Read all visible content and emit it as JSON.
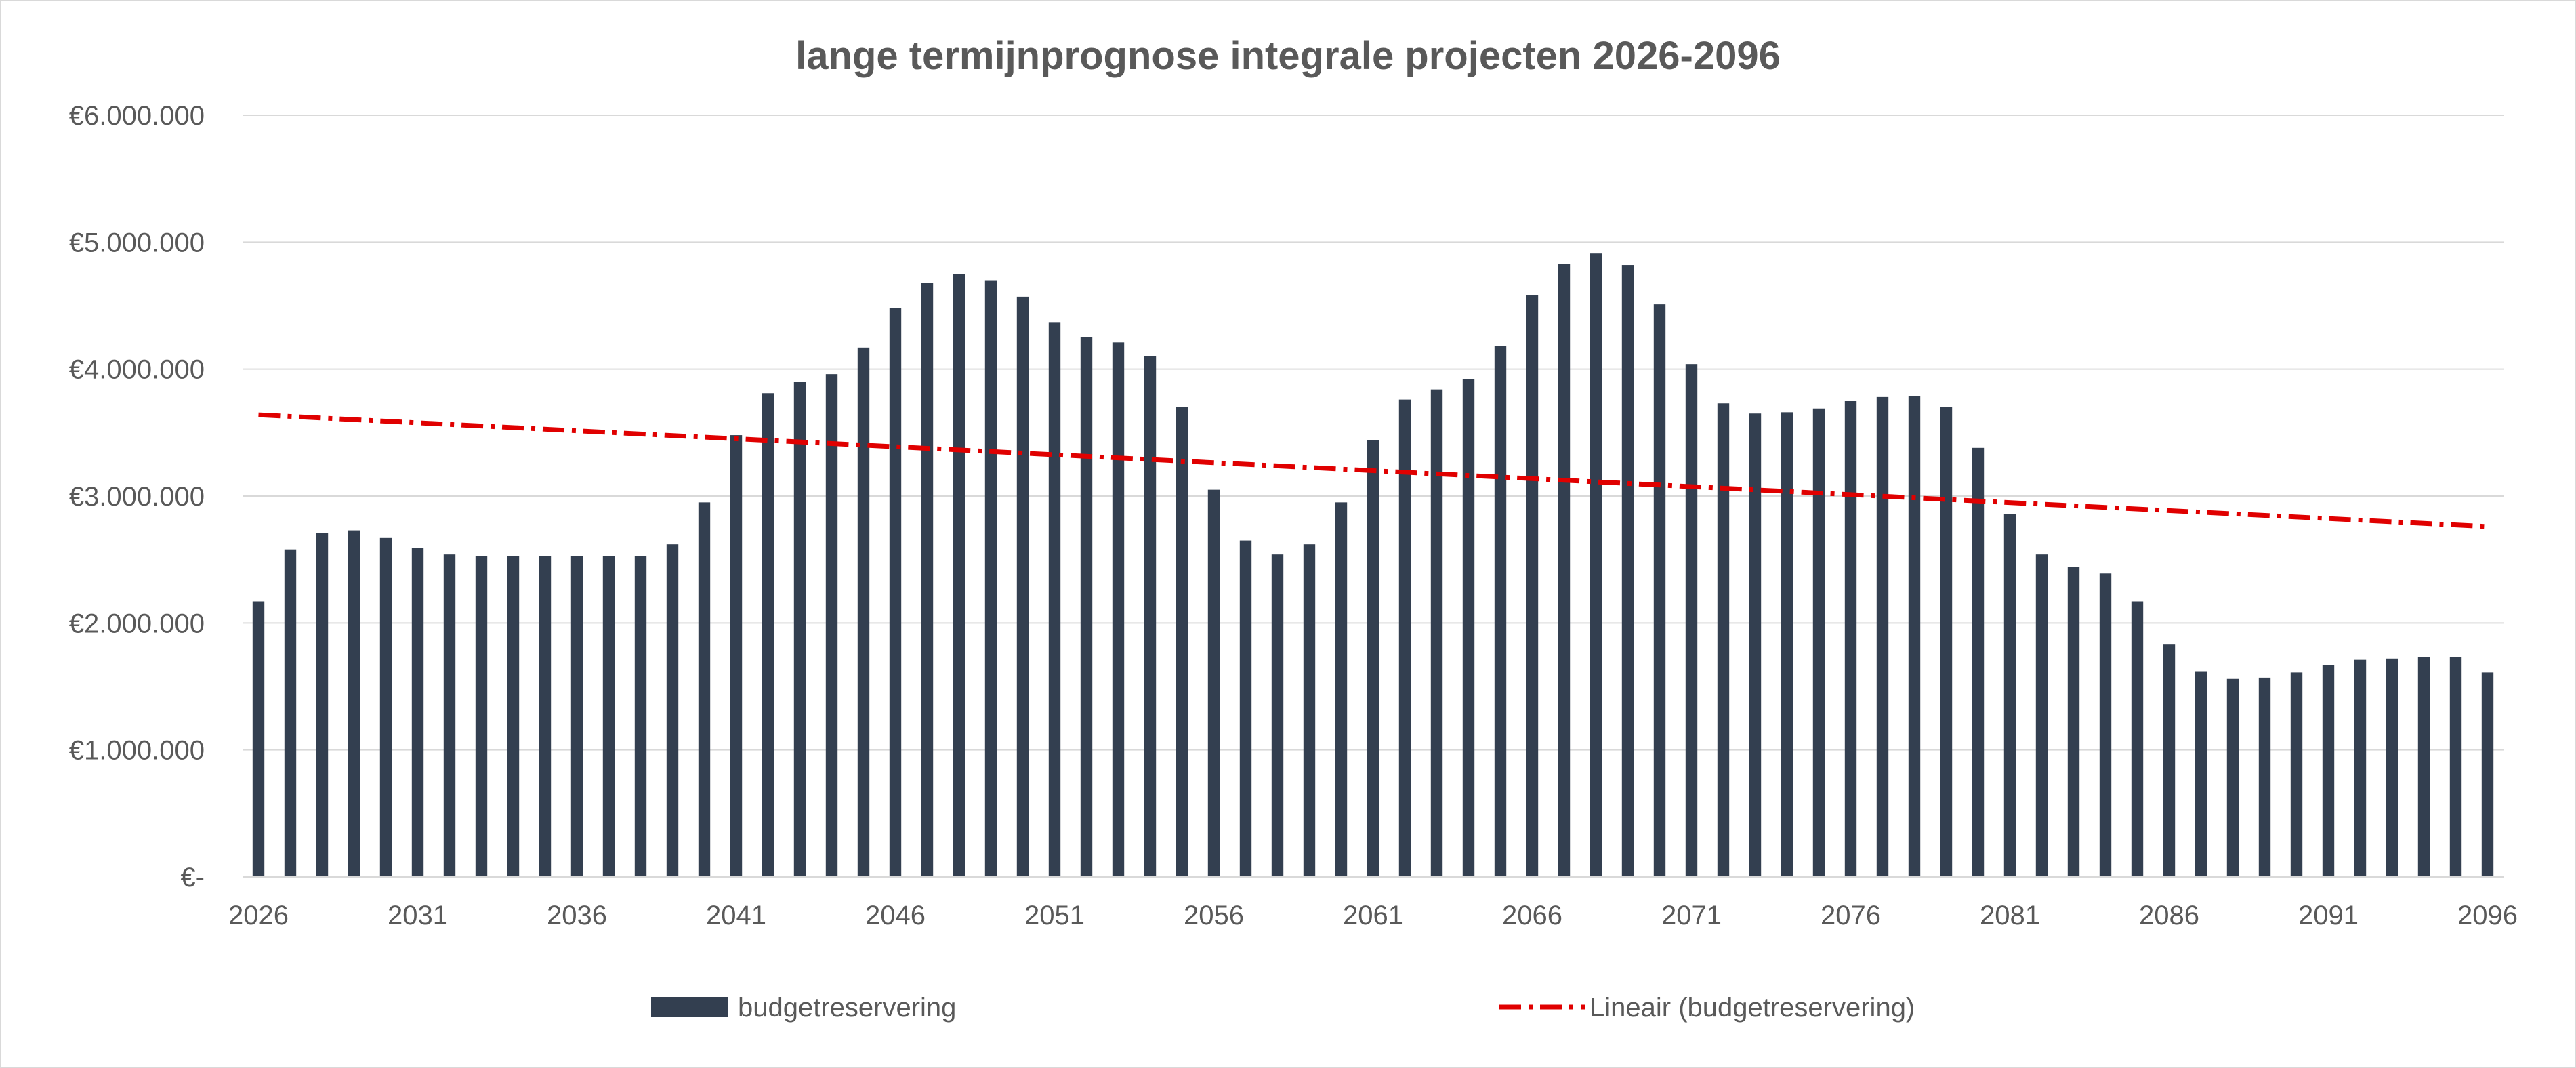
{
  "chart_data": {
    "type": "bar",
    "title": "lange termijnprognose integrale projecten 2026-2096",
    "xlabel": "",
    "ylabel": "",
    "ylim": [
      0,
      6000000
    ],
    "y_ticks": [
      0,
      1000000,
      2000000,
      3000000,
      4000000,
      5000000,
      6000000
    ],
    "y_tick_labels": [
      "€-",
      "€1.000.000",
      "€2.000.000",
      "€3.000.000",
      "€4.000.000",
      "€5.000.000",
      "€6.000.000"
    ],
    "x": [
      2026,
      2027,
      2028,
      2029,
      2030,
      2031,
      2032,
      2033,
      2034,
      2035,
      2036,
      2037,
      2038,
      2039,
      2040,
      2041,
      2042,
      2043,
      2044,
      2045,
      2046,
      2047,
      2048,
      2049,
      2050,
      2051,
      2052,
      2053,
      2054,
      2055,
      2056,
      2057,
      2058,
      2059,
      2060,
      2061,
      2062,
      2063,
      2064,
      2065,
      2066,
      2067,
      2068,
      2069,
      2070,
      2071,
      2072,
      2073,
      2074,
      2075,
      2076,
      2077,
      2078,
      2079,
      2080,
      2081,
      2082,
      2083,
      2084,
      2085,
      2086,
      2087,
      2088,
      2089,
      2090,
      2091,
      2092,
      2093,
      2094,
      2095,
      2096
    ],
    "x_tick_labels": [
      "2026",
      "2031",
      "2036",
      "2041",
      "2046",
      "2051",
      "2056",
      "2061",
      "2066",
      "2071",
      "2076",
      "2081",
      "2086",
      "2091",
      "2096"
    ],
    "series": [
      {
        "name": "budgetreservering",
        "color": "#333f50",
        "values": [
          2170000,
          2580000,
          2710000,
          2730000,
          2670000,
          2590000,
          2540000,
          2530000,
          2530000,
          2530000,
          2530000,
          2530000,
          2530000,
          2620000,
          2950000,
          3480000,
          3810000,
          3900000,
          3960000,
          4170000,
          4480000,
          4680000,
          4750000,
          4700000,
          4570000,
          4370000,
          4250000,
          4210000,
          4100000,
          3700000,
          3050000,
          2650000,
          2540000,
          2620000,
          2950000,
          3440000,
          3760000,
          3840000,
          3920000,
          4180000,
          4580000,
          4830000,
          4910000,
          4820000,
          4510000,
          4040000,
          3730000,
          3650000,
          3660000,
          3690000,
          3750000,
          3780000,
          3790000,
          3700000,
          3380000,
          2860000,
          2540000,
          2440000,
          2390000,
          2170000,
          1830000,
          1620000,
          1560000,
          1570000,
          1610000,
          1670000,
          1710000,
          1720000,
          1730000,
          1730000,
          1610000
        ]
      }
    ],
    "trendline": {
      "name": "Lineair (budgetreservering)",
      "type": "linear",
      "color": "#e00000",
      "start": {
        "x": 2026,
        "y": 3640000
      },
      "end": {
        "x": 2096,
        "y": 2760000
      }
    },
    "grid": true,
    "legend_position": "bottom"
  }
}
